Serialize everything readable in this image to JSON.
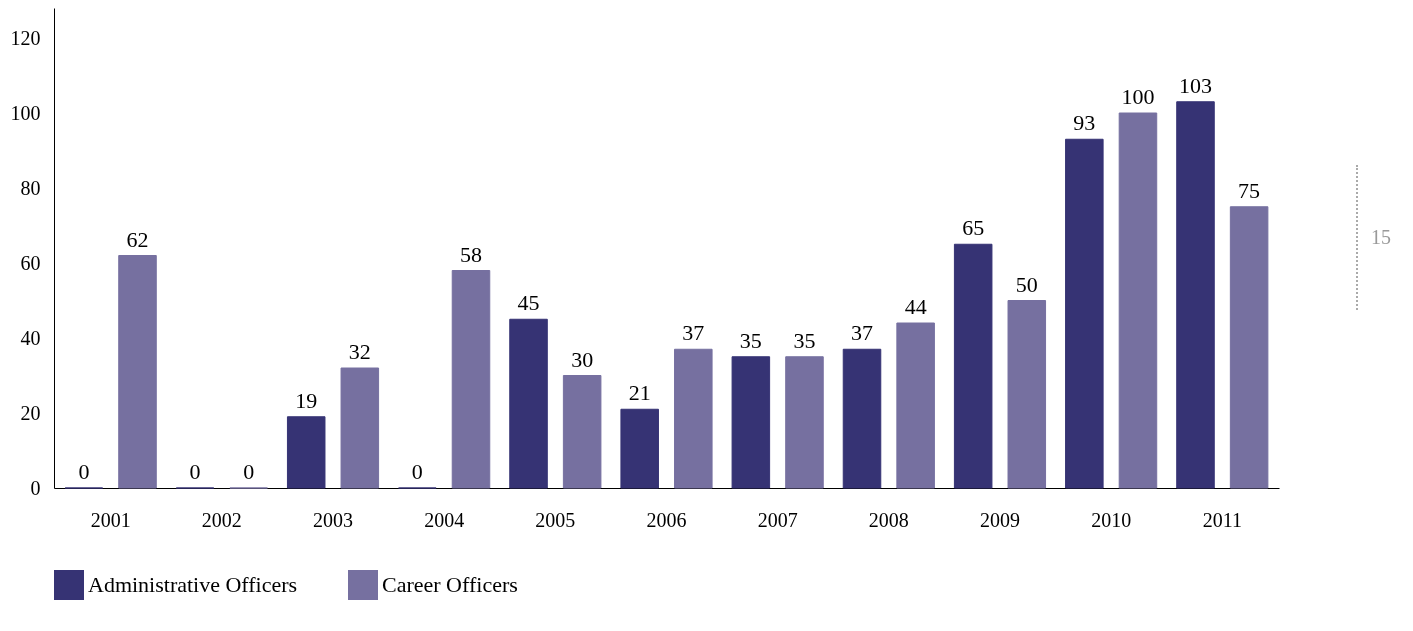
{
  "chart_data": {
    "type": "bar",
    "categories": [
      "2001",
      "2002",
      "2003",
      "2004",
      "2005",
      "2006",
      "2007",
      "2008",
      "2009",
      "2010",
      "2011"
    ],
    "series": [
      {
        "name": "Administrative Officers",
        "color": "#363374",
        "values": [
          0,
          0,
          19,
          0,
          45,
          21,
          35,
          37,
          65,
          93,
          103
        ]
      },
      {
        "name": "Career Officers",
        "color": "#7670a0",
        "values": [
          62,
          0,
          32,
          58,
          30,
          37,
          35,
          44,
          50,
          100,
          75
        ]
      }
    ],
    "ylim": [
      0,
      128
    ],
    "yticks": [
      0,
      20,
      40,
      60,
      80,
      100,
      120
    ],
    "data_labels": true,
    "legend": "bottom",
    "annotations": [
      "15"
    ]
  }
}
